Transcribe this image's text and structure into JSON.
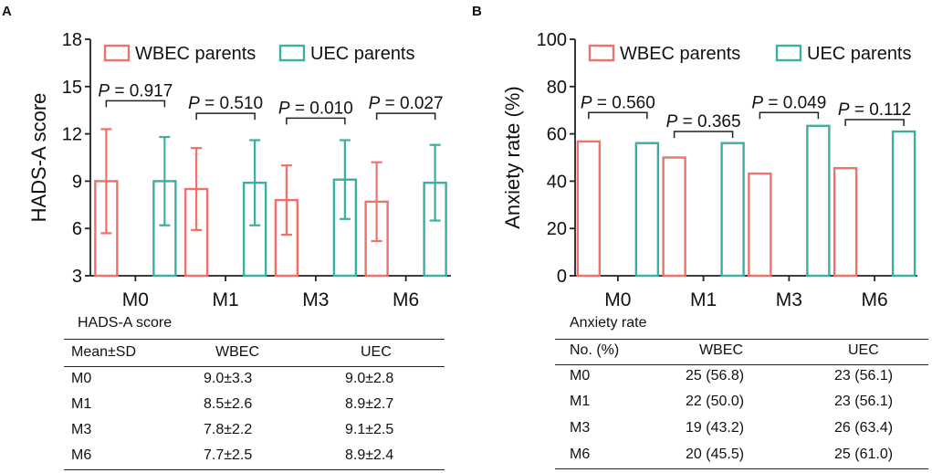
{
  "colors": {
    "wbec": "#F0716A",
    "uec": "#3BAFA0",
    "axis": "#222222"
  },
  "panel_a": {
    "letter": "A",
    "table": {
      "title": "HADS-A score",
      "headers": [
        "Mean±SD",
        "WBEC",
        "UEC"
      ],
      "rows": [
        [
          "M0",
          "9.0±3.3",
          "9.0±2.8"
        ],
        [
          "M1",
          "8.5±2.6",
          "8.9±2.7"
        ],
        [
          "M3",
          "7.8±2.2",
          "9.1±2.5"
        ],
        [
          "M6",
          "7.7±2.5",
          "8.9±2.4"
        ]
      ]
    }
  },
  "panel_b": {
    "letter": "B",
    "table": {
      "title": "Anxiety rate",
      "headers": [
        "No. (%)",
        "WBEC",
        "UEC"
      ],
      "rows": [
        [
          "M0",
          "25 (56.8)",
          "23 (56.1)"
        ],
        [
          "M1",
          "22 (50.0)",
          "23 (56.1)"
        ],
        [
          "M3",
          "19 (43.2)",
          "26 (63.4)"
        ],
        [
          "M6",
          "20 (45.5)",
          "25 (61.0)"
        ]
      ]
    }
  },
  "chart_data": [
    {
      "type": "bar",
      "title": "",
      "xlabel": "",
      "ylabel": "HADS-A score",
      "ylim": [
        3,
        18
      ],
      "yticks": [
        3,
        6,
        9,
        12,
        15,
        18
      ],
      "categories": [
        "M0",
        "M1",
        "M3",
        "M6"
      ],
      "legend": [
        "WBEC parents",
        "UEC parents"
      ],
      "legend_position": "top",
      "series": [
        {
          "name": "WBEC parents",
          "values": [
            9.0,
            8.5,
            7.8,
            7.7
          ],
          "sd": [
            3.3,
            2.6,
            2.2,
            2.5
          ]
        },
        {
          "name": "UEC parents",
          "values": [
            9.0,
            8.9,
            9.1,
            8.9
          ],
          "sd": [
            2.8,
            2.7,
            2.5,
            2.4
          ]
        }
      ],
      "annotations": [
        {
          "p_label": "P",
          "p_value": " = 0.917",
          "level": 14.1
        },
        {
          "p_label": "P",
          "p_value": " = 0.510",
          "level": 13.3
        },
        {
          "p_label": "P",
          "p_value": " = 0.010",
          "level": 13.0
        },
        {
          "p_label": "P",
          "p_value": " = 0.027",
          "level": 13.3
        }
      ]
    },
    {
      "type": "bar",
      "title": "",
      "xlabel": "",
      "ylabel": "Anxiety rate (%)",
      "ylim": [
        0,
        100
      ],
      "yticks": [
        0,
        20,
        40,
        60,
        80,
        100
      ],
      "categories": [
        "M0",
        "M1",
        "M3",
        "M6"
      ],
      "legend": [
        "WBEC parents",
        "UEC parents"
      ],
      "legend_position": "top",
      "series": [
        {
          "name": "WBEC parents",
          "values": [
            56.8,
            50.0,
            43.2,
            45.5
          ]
        },
        {
          "name": "UEC parents",
          "values": [
            56.1,
            56.1,
            63.4,
            61.0
          ]
        }
      ],
      "annotations": [
        {
          "p_label": "P",
          "p_value": " = 0.560",
          "level": 69
        },
        {
          "p_label": "P",
          "p_value": " = 0.365",
          "level": 61
        },
        {
          "p_label": "P",
          "p_value": " = 0.049",
          "level": 69
        },
        {
          "p_label": "P",
          "p_value": " = 0.112",
          "level": 66
        }
      ]
    }
  ]
}
